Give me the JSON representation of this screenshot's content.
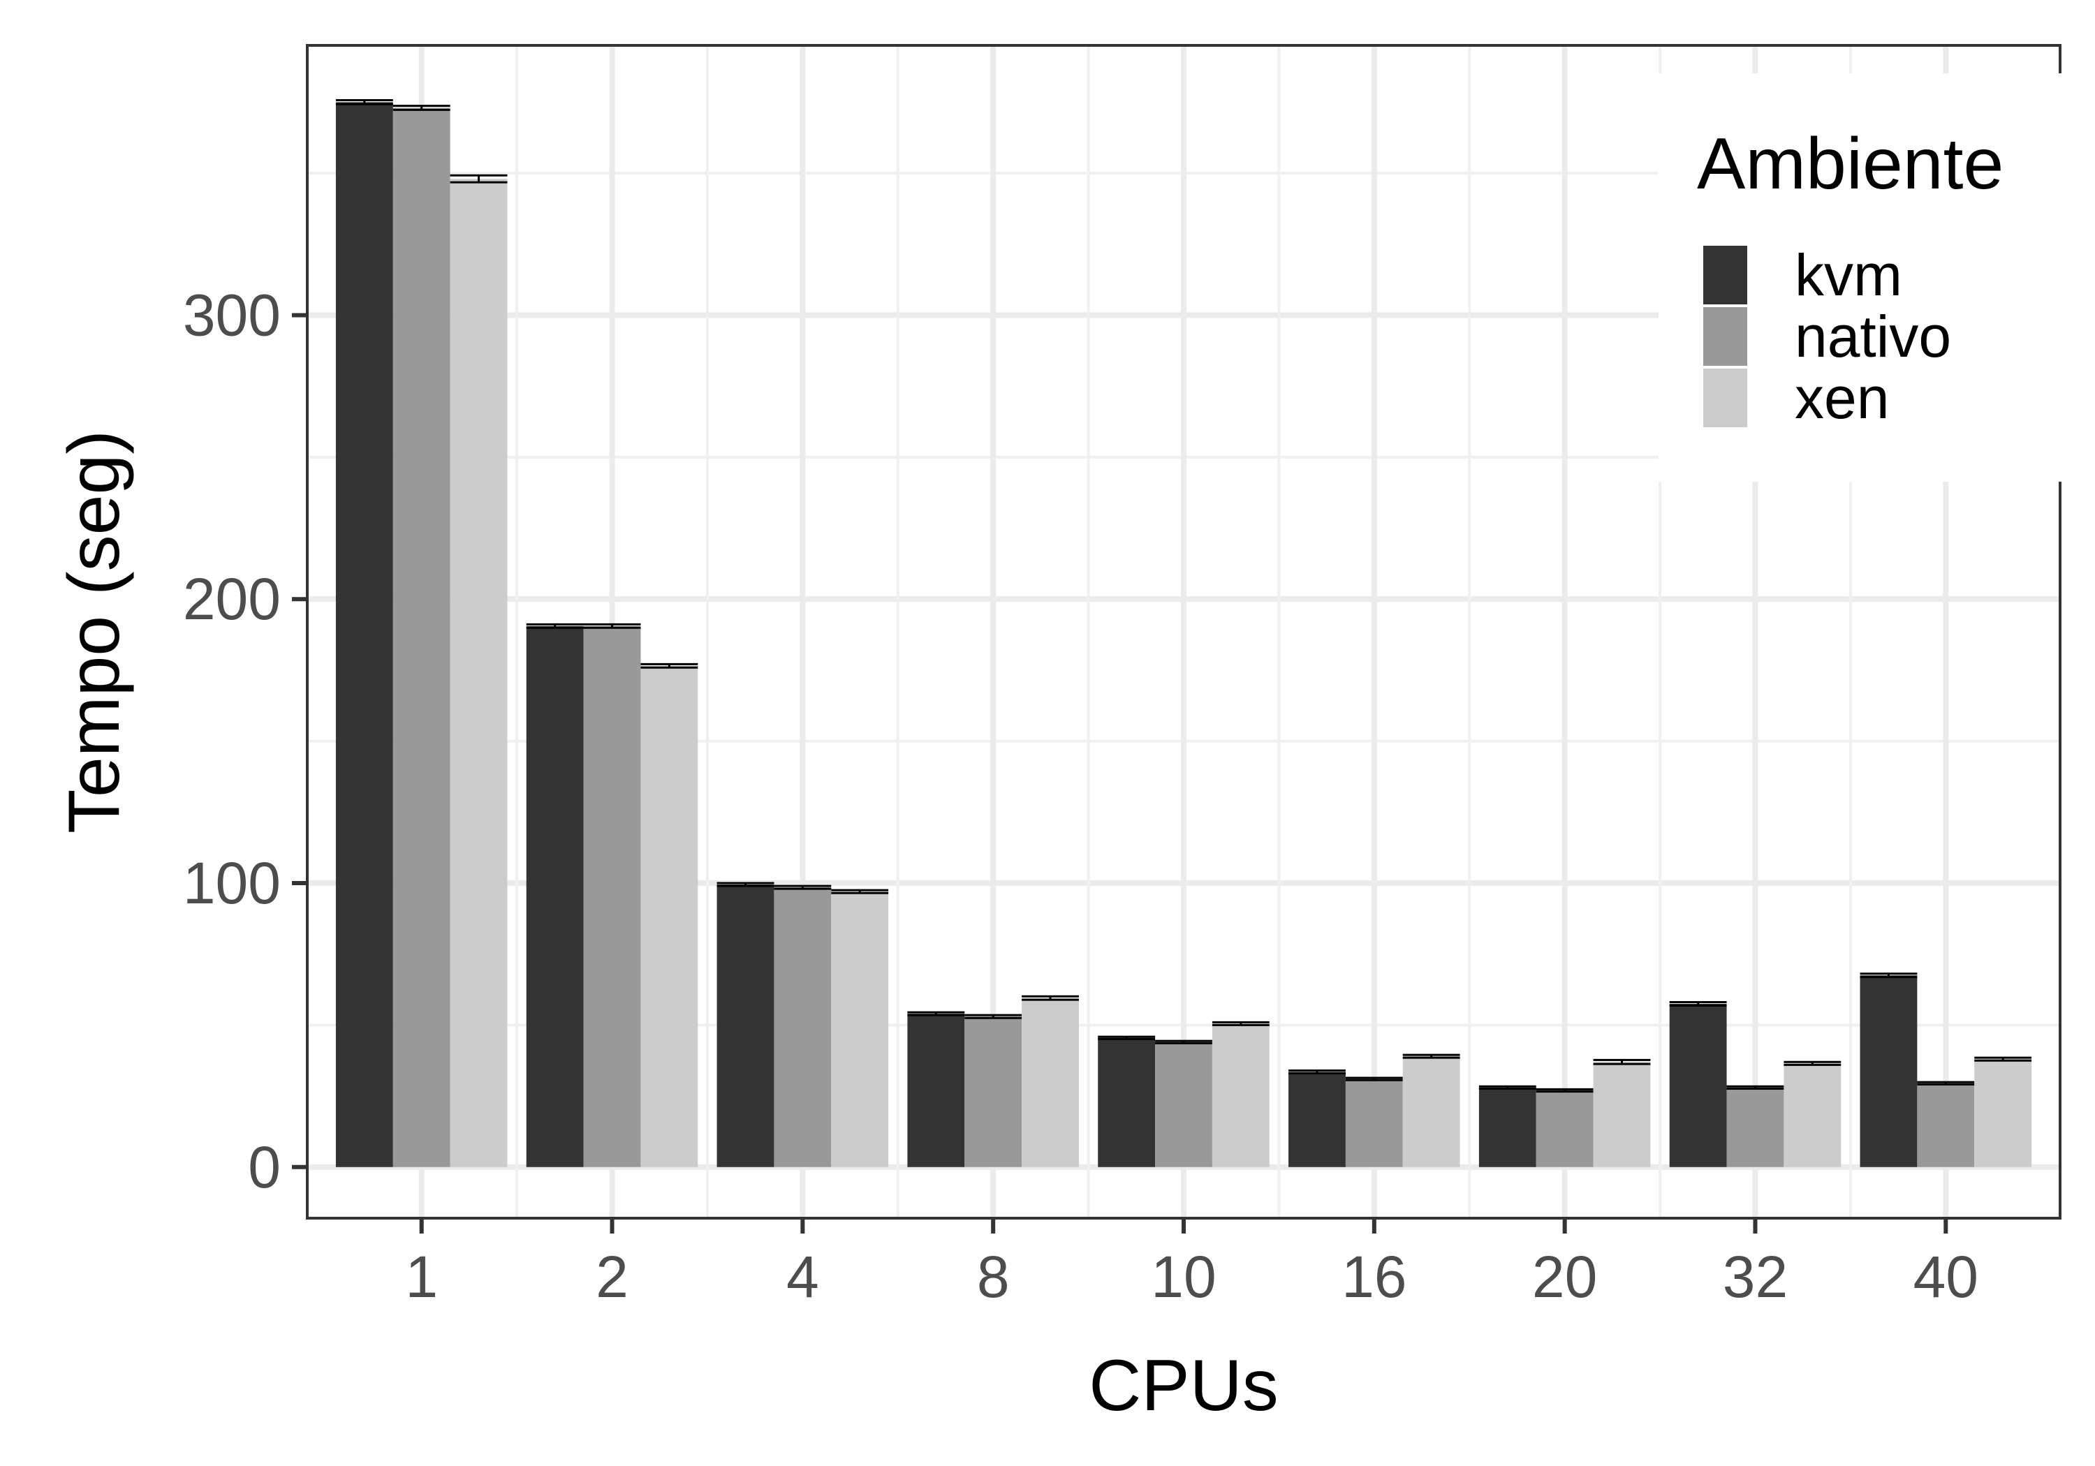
{
  "chart_data": {
    "type": "bar",
    "xlabel": "CPUs",
    "ylabel": "Tempo (seg)",
    "categories": [
      "1",
      "2",
      "4",
      "8",
      "10",
      "16",
      "20",
      "32",
      "40"
    ],
    "ylim": [
      -18,
      395
    ],
    "yticks": [
      0,
      100,
      200,
      300
    ],
    "grid": true,
    "legend": {
      "title": "Ambiente",
      "position": "top-right"
    },
    "series": [
      {
        "name": "kvm",
        "color": "#333333",
        "values": [
          375,
          190.5,
          99.5,
          54,
          45.5,
          33.5,
          28,
          57.5,
          67.5
        ],
        "errors": [
          0.7,
          0.6,
          0.5,
          0.5,
          0.4,
          0.5,
          0.4,
          0.6,
          0.6
        ]
      },
      {
        "name": "nativo",
        "color": "#999999",
        "values": [
          373,
          190.5,
          98.5,
          53,
          44,
          31,
          27,
          28,
          29.5
        ],
        "errors": [
          0.7,
          0.6,
          0.5,
          0.5,
          0.4,
          0.4,
          0.4,
          0.4,
          0.4
        ]
      },
      {
        "name": "xen",
        "color": "#cccccc",
        "values": [
          348,
          176.5,
          97,
          59.5,
          50.5,
          39,
          37,
          36.5,
          38
        ],
        "errors": [
          1.2,
          0.6,
          0.5,
          0.6,
          0.5,
          0.5,
          0.7,
          0.5,
          0.5
        ]
      }
    ]
  }
}
